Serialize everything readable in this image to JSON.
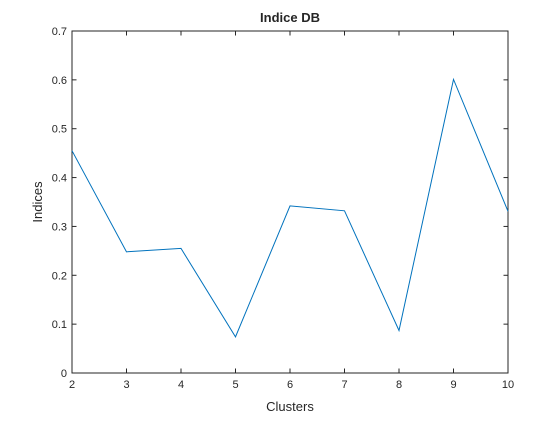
{
  "chart_data": {
    "type": "line",
    "title": "Indice DB",
    "xlabel": "Clusters",
    "ylabel": "Indices",
    "xlim": [
      2,
      10
    ],
    "ylim": [
      0,
      0.7
    ],
    "x_ticks": [
      "2",
      "3",
      "4",
      "5",
      "6",
      "7",
      "8",
      "9",
      "10"
    ],
    "y_ticks": [
      "0",
      "0.1",
      "0.2",
      "0.3",
      "0.4",
      "0.5",
      "0.6",
      "0.7"
    ],
    "grid": false,
    "series": [
      {
        "color": "#0072bd",
        "x": [
          2,
          3,
          4,
          5,
          6,
          7,
          8,
          9,
          10
        ],
        "y": [
          0.455,
          0.248,
          0.255,
          0.074,
          0.342,
          0.332,
          0.087,
          0.601,
          0.331
        ]
      }
    ]
  }
}
